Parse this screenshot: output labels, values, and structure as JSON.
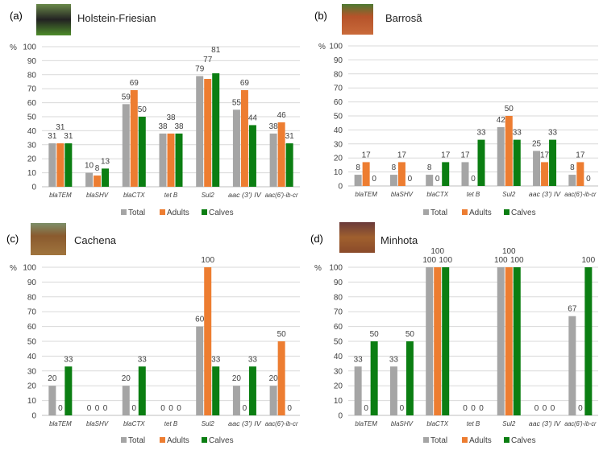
{
  "colors": {
    "Total": "#a5a5a5",
    "Adults": "#ed7d31",
    "Calves": "#0b7e12",
    "grid": "#d9d9d9",
    "text": "#404040"
  },
  "chart_data": [
    {
      "type": "bar",
      "panel": "(a)",
      "title": "Holstein-Friesian",
      "ylabel": "%",
      "ylim": [
        0,
        100
      ],
      "yticks": [
        0,
        10,
        20,
        30,
        40,
        50,
        60,
        70,
        80,
        90,
        100
      ],
      "categories": [
        "blaTEM",
        "blaSHV",
        "blaCTX",
        "tet B",
        "Sul2",
        "aac (3') IV",
        "aac(6')-ib-cr"
      ],
      "series": [
        {
          "name": "Total",
          "values": [
            31,
            10,
            59,
            38,
            79,
            55,
            38
          ]
        },
        {
          "name": "Adults",
          "values": [
            31,
            8,
            69,
            38,
            77,
            69,
            46
          ]
        },
        {
          "name": "Calves",
          "values": [
            31,
            13,
            50,
            38,
            81,
            44,
            31
          ]
        }
      ],
      "legend": "bottom-center",
      "grid": true
    },
    {
      "type": "bar",
      "panel": "(b)",
      "title": "Barrosã",
      "ylabel": "%",
      "ylim": [
        0,
        100
      ],
      "yticks": [
        0,
        10,
        20,
        30,
        40,
        50,
        60,
        70,
        80,
        90,
        100
      ],
      "categories": [
        "blaTEM",
        "blaSHV",
        "blaCTX",
        "tet B",
        "Sul2",
        "aac (3') IV",
        "aac(6')-ib-cr"
      ],
      "series": [
        {
          "name": "Total",
          "values": [
            8,
            8,
            8,
            17,
            42,
            25,
            8
          ]
        },
        {
          "name": "Adults",
          "values": [
            17,
            17,
            0,
            0,
            50,
            17,
            17
          ]
        },
        {
          "name": "Calves",
          "values": [
            0,
            0,
            17,
            33,
            33,
            33,
            0
          ]
        }
      ],
      "legend": "bottom-center",
      "grid": true
    },
    {
      "type": "bar",
      "panel": "(c)",
      "title": "Cachena",
      "ylabel": "%",
      "ylim": [
        0,
        100
      ],
      "yticks": [
        0,
        10,
        20,
        30,
        40,
        50,
        60,
        70,
        80,
        90,
        100
      ],
      "categories": [
        "blaTEM",
        "blaSHV",
        "blaCTX",
        "tet B",
        "Sul2",
        "aac (3') IV",
        "aac(6')-ib-cr"
      ],
      "series": [
        {
          "name": "Total",
          "values": [
            20,
            0,
            20,
            0,
            60,
            20,
            20
          ]
        },
        {
          "name": "Adults",
          "values": [
            0,
            0,
            0,
            0,
            100,
            0,
            50
          ]
        },
        {
          "name": "Calves",
          "values": [
            33,
            0,
            33,
            0,
            33,
            33,
            0
          ]
        }
      ],
      "legend": "bottom-center",
      "grid": true
    },
    {
      "type": "bar",
      "panel": "(d)",
      "title": "Minhota",
      "ylabel": "%",
      "ylim": [
        0,
        100
      ],
      "yticks": [
        0,
        10,
        20,
        30,
        40,
        50,
        60,
        70,
        80,
        90,
        100
      ],
      "categories": [
        "blaTEM",
        "blaSHV",
        "blaCTX",
        "tet B",
        "Sul2",
        "aac (3') IV",
        "aac(6')-ib-cr"
      ],
      "series": [
        {
          "name": "Total",
          "values": [
            33,
            33,
            100,
            0,
            100,
            0,
            67
          ]
        },
        {
          "name": "Adults",
          "values": [
            0,
            0,
            100,
            0,
            100,
            0,
            0
          ]
        },
        {
          "name": "Calves",
          "values": [
            50,
            50,
            100,
            0,
            100,
            0,
            100
          ]
        }
      ],
      "legend": "bottom-center",
      "grid": true
    }
  ]
}
